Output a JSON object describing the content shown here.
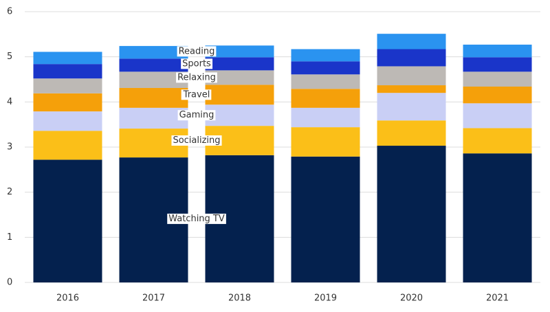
{
  "chart_data": {
    "type": "stacked-bar",
    "categories": [
      "2016",
      "2017",
      "2018",
      "2019",
      "2020",
      "2021"
    ],
    "series": [
      {
        "name": "Watching TV",
        "color": "#04214e",
        "values": [
          2.72,
          2.77,
          2.82,
          2.79,
          3.03,
          2.86
        ]
      },
      {
        "name": "Socializing",
        "color": "#fbbf18",
        "values": [
          0.64,
          0.64,
          0.65,
          0.65,
          0.56,
          0.56
        ]
      },
      {
        "name": "Gaming",
        "color": "#c9cff5",
        "values": [
          0.43,
          0.46,
          0.47,
          0.43,
          0.61,
          0.55
        ]
      },
      {
        "name": "Travel",
        "color": "#f5a00a",
        "values": [
          0.4,
          0.44,
          0.44,
          0.42,
          0.17,
          0.37
        ]
      },
      {
        "name": "Relaxing",
        "color": "#bdb9b5",
        "values": [
          0.33,
          0.36,
          0.32,
          0.32,
          0.42,
          0.33
        ]
      },
      {
        "name": "Sports",
        "color": "#1a35c9",
        "values": [
          0.32,
          0.29,
          0.29,
          0.29,
          0.38,
          0.32
        ]
      },
      {
        "name": "Reading",
        "color": "#2a93f0",
        "values": [
          0.27,
          0.28,
          0.26,
          0.27,
          0.34,
          0.28
        ]
      }
    ],
    "ylim": [
      0,
      6
    ],
    "yticks": [
      0,
      1,
      2,
      3,
      4,
      5,
      6
    ],
    "grid": true
  }
}
